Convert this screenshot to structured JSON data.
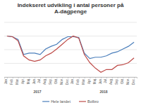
{
  "chart_data": {
    "type": "line",
    "title": "Indekseret udvikling i antal personer på A-dagpenge",
    "categories": [
      "Jan",
      "Feb",
      "Mar",
      "Apr",
      "Maj",
      "Jun",
      "Jul",
      "Aug",
      "Sep",
      "Okt",
      "Nov",
      "Dec",
      "Jan",
      "Feb",
      "Mar",
      "Apr",
      "Maj",
      "Jun",
      "Jul",
      "Aug",
      "Sep",
      "Okt",
      "Nov",
      "Dec"
    ],
    "annotations": [
      "2017",
      "2018"
    ],
    "series": [
      {
        "name": "Hele landet",
        "color": "#4a7ebb",
        "values": [
          100,
          99.5,
          97.5,
          86.5,
          87.5,
          87.5,
          86.5,
          90.5,
          92.5,
          94,
          97.5,
          99.5,
          99.5,
          99,
          87.5,
          83.5,
          84.5,
          84.5,
          85.5,
          87.5,
          88.5,
          90.5,
          92.5,
          95.5
        ]
      },
      {
        "name": "Bolbro",
        "color": "#be4b48",
        "values": [
          100,
          99.5,
          96.5,
          85.5,
          82.5,
          81.5,
          82.5,
          85.5,
          87.5,
          90.5,
          94,
          97.5,
          100,
          98.5,
          86.5,
          80.5,
          76.5,
          73.5,
          75.5,
          75.5,
          78.5,
          79,
          80.5,
          84
        ]
      }
    ],
    "ylim": [
      70,
      110
    ],
    "yticks": [
      70,
      80,
      90,
      100,
      110
    ],
    "grid": true,
    "tick_labels": "x",
    "legend": "bottom"
  }
}
